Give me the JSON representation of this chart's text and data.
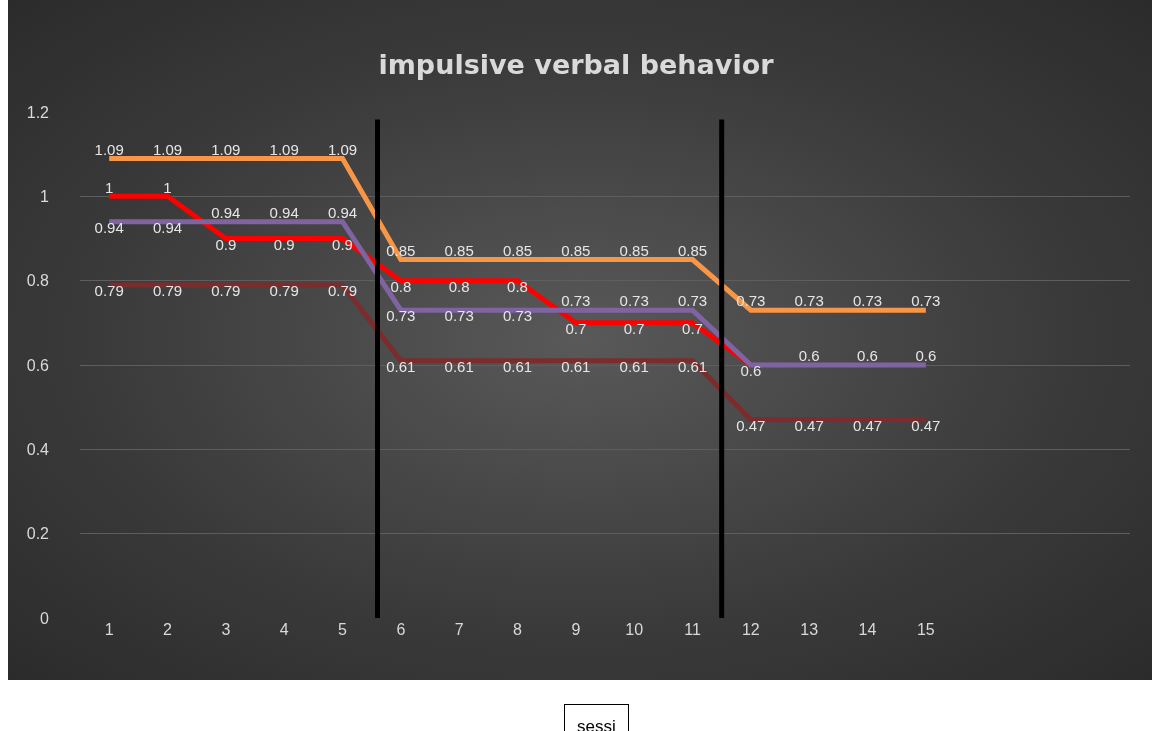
{
  "chart_data": {
    "type": "line",
    "title": "impulsive verbal behavior",
    "xlabel": "sessi",
    "x": [
      1,
      2,
      3,
      4,
      5,
      6,
      7,
      8,
      9,
      10,
      11,
      12,
      13,
      14,
      15
    ],
    "xlim": [
      0.5,
      18.5
    ],
    "xticks": [
      1,
      2,
      3,
      4,
      5,
      6,
      7,
      8,
      9,
      10,
      11,
      12,
      13,
      14,
      15
    ],
    "ylim": [
      0,
      1.2
    ],
    "yticks": [
      0,
      0.2,
      0.4,
      0.6,
      0.8,
      1,
      1.2
    ],
    "grid": "y",
    "marker": "none",
    "line_style": "solid",
    "series": [
      {
        "color": "#f79646",
        "values": [
          1.09,
          1.09,
          1.09,
          1.09,
          1.09,
          0.85,
          0.85,
          0.85,
          0.85,
          0.85,
          0.85,
          0.73,
          0.73,
          0.73,
          0.73
        ],
        "value_labels": [
          "1.09",
          "1.09",
          "1.09",
          "1.09",
          "1.09",
          "0.85",
          "0.85",
          "0.85",
          "0.85",
          "0.85",
          "0.85",
          "0.73",
          "0.73",
          "0.73",
          "0.73"
        ]
      },
      {
        "color": "#ff0000",
        "values": [
          1,
          1,
          0.9,
          0.9,
          0.9,
          0.8,
          0.8,
          0.8,
          0.7,
          0.7,
          0.7,
          0.6,
          null,
          null,
          null
        ],
        "value_labels": [
          "1",
          "1",
          "0.9",
          "0.9",
          "0.9",
          "0.8",
          "0.8",
          "0.8",
          "0.7",
          "0.7",
          "0.7",
          null,
          null,
          null,
          null
        ]
      },
      {
        "color": "#8064a2",
        "values": [
          0.94,
          0.94,
          0.94,
          0.94,
          0.94,
          0.73,
          0.73,
          0.73,
          0.73,
          0.73,
          0.73,
          0.6,
          0.6,
          0.6,
          0.6
        ],
        "value_labels": [
          "0.94",
          "0.94",
          "0.94",
          "0.94",
          "0.94",
          "0.73",
          "0.73",
          "0.73",
          "0.73",
          "0.73",
          "0.73",
          "0.6",
          "0.6",
          "0.6",
          "0.6"
        ]
      },
      {
        "color": "#7b2c2c",
        "values": [
          0.79,
          0.79,
          0.79,
          0.79,
          0.79,
          0.61,
          0.61,
          0.61,
          0.61,
          0.61,
          0.61,
          0.47,
          0.47,
          0.47,
          0.47
        ],
        "value_labels": [
          "0.79",
          "0.79",
          "0.79",
          "0.79",
          "0.79",
          "0.61",
          "0.61",
          "0.61",
          "0.61",
          "0.61",
          "0.61",
          "0.47",
          "0.47",
          "0.47",
          "0.47"
        ]
      }
    ],
    "ref_lines": [
      {
        "axis": "x",
        "value": 5.6,
        "color": "#000000"
      },
      {
        "axis": "x",
        "value": 11.5,
        "color": "#000000"
      }
    ]
  }
}
